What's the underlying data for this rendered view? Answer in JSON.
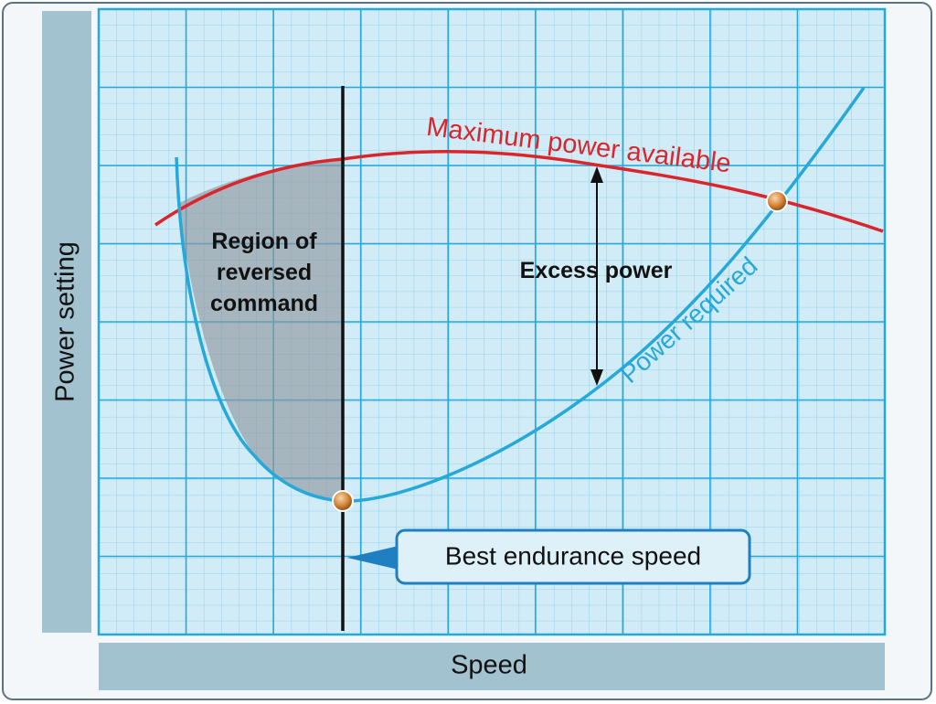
{
  "axes": {
    "y_label": "Power setting",
    "x_label": "Speed"
  },
  "curves": {
    "max_power_label": "Maximum power available",
    "power_required_label": "Power required"
  },
  "annotations": {
    "region_line1": "Region of",
    "region_line2": "reversed",
    "region_line3": "command",
    "excess_power": "Excess power",
    "best_endurance": "Best endurance speed"
  },
  "colors": {
    "grid_bg": "#d2ecf7",
    "grid_line": "#26a9d8",
    "max_power_curve": "#d9252b",
    "power_required_curve": "#26a9d8",
    "label_bar": "#a3c2d0",
    "region_fill": "#8f98a0"
  }
}
